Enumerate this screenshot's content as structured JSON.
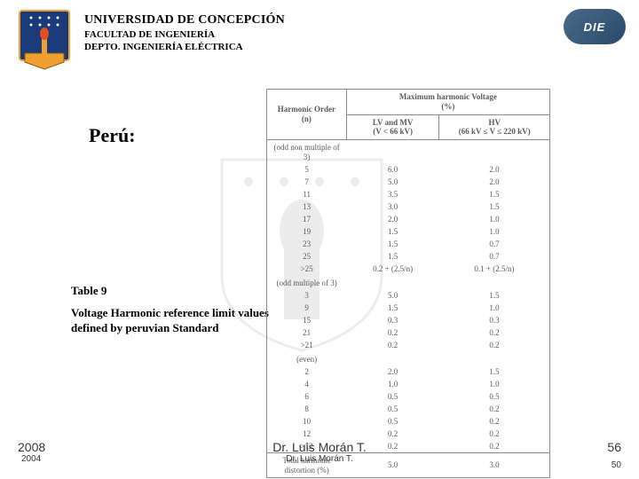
{
  "header": {
    "university": "UNIVERSIDAD DE CONCEPCIÓN",
    "faculty": "FACULTAD DE INGENIERÍA",
    "department": "DEPTO. INGENIERÍA ELÉCTRICA",
    "die_label": "DIE"
  },
  "section_title": "Perú:",
  "table_caption": "Table 9",
  "table_desc": "Voltage Harmonic reference limit values defined by peruvian Standard",
  "table": {
    "head_col1": "Harmonic Order\n(n)",
    "head_col2": "Maximum harmonic Voltage\n(%)",
    "sub_lv": "LV and MV\n(V < 66 kV)",
    "sub_hv": "HV\n(66 kV ≤ V ≤ 220 kV)",
    "group1_label": "(odd non multiple of 3)",
    "group1": [
      {
        "n": "5",
        "lv": "6.0",
        "hv": "2.0"
      },
      {
        "n": "7",
        "lv": "5.0",
        "hv": "2.0"
      },
      {
        "n": "11",
        "lv": "3.5",
        "hv": "1.5"
      },
      {
        "n": "13",
        "lv": "3.0",
        "hv": "1.5"
      },
      {
        "n": "17",
        "lv": "2.0",
        "hv": "1.0"
      },
      {
        "n": "19",
        "lv": "1.5",
        "hv": "1.0"
      },
      {
        "n": "23",
        "lv": "1.5",
        "hv": "0.7"
      },
      {
        "n": "25",
        "lv": "1.5",
        "hv": "0.7"
      },
      {
        "n": ">25",
        "lv": "0.2 + (2.5/n)",
        "hv": "0.1 + (2.5/n)"
      }
    ],
    "group2_label": "(odd multiple of 3)",
    "group2": [
      {
        "n": "3",
        "lv": "5.0",
        "hv": "1.5"
      },
      {
        "n": "9",
        "lv": "1.5",
        "hv": "1.0"
      },
      {
        "n": "15",
        "lv": "0.3",
        "hv": "0.3"
      },
      {
        "n": "21",
        "lv": "0.2",
        "hv": "0.2"
      },
      {
        "n": ">21",
        "lv": "0.2",
        "hv": "0.2"
      }
    ],
    "group3_label": "(even)",
    "group3": [
      {
        "n": "2",
        "lv": "2.0",
        "hv": "1.5"
      },
      {
        "n": "4",
        "lv": "1.0",
        "hv": "1.0"
      },
      {
        "n": "6",
        "lv": "0.5",
        "hv": "0.5"
      },
      {
        "n": "8",
        "lv": "0.5",
        "hv": "0.2"
      },
      {
        "n": "10",
        "lv": "0.5",
        "hv": "0.2"
      },
      {
        "n": "12",
        "lv": "0.2",
        "hv": "0.2"
      },
      {
        "n": ">12",
        "lv": "0.2",
        "hv": "0.2"
      }
    ],
    "total_label": "Total harmonic\ndistortion (%)",
    "total_lv": "5.0",
    "total_hv": "3.0"
  },
  "footer": {
    "year1": "2008",
    "year2": "2004",
    "author1": "Dr. Luis Morán T.",
    "author2": "Dr. Luis Morán T.",
    "page1": "56",
    "page2": "50"
  },
  "colors": {
    "shield_blue": "#1a3a7a",
    "shield_yellow": "#f0a030",
    "die_grad_a": "#4a6a8a",
    "die_grad_b": "#2a4a6a",
    "table_border": "#888888",
    "table_text": "#5a5a5a"
  }
}
